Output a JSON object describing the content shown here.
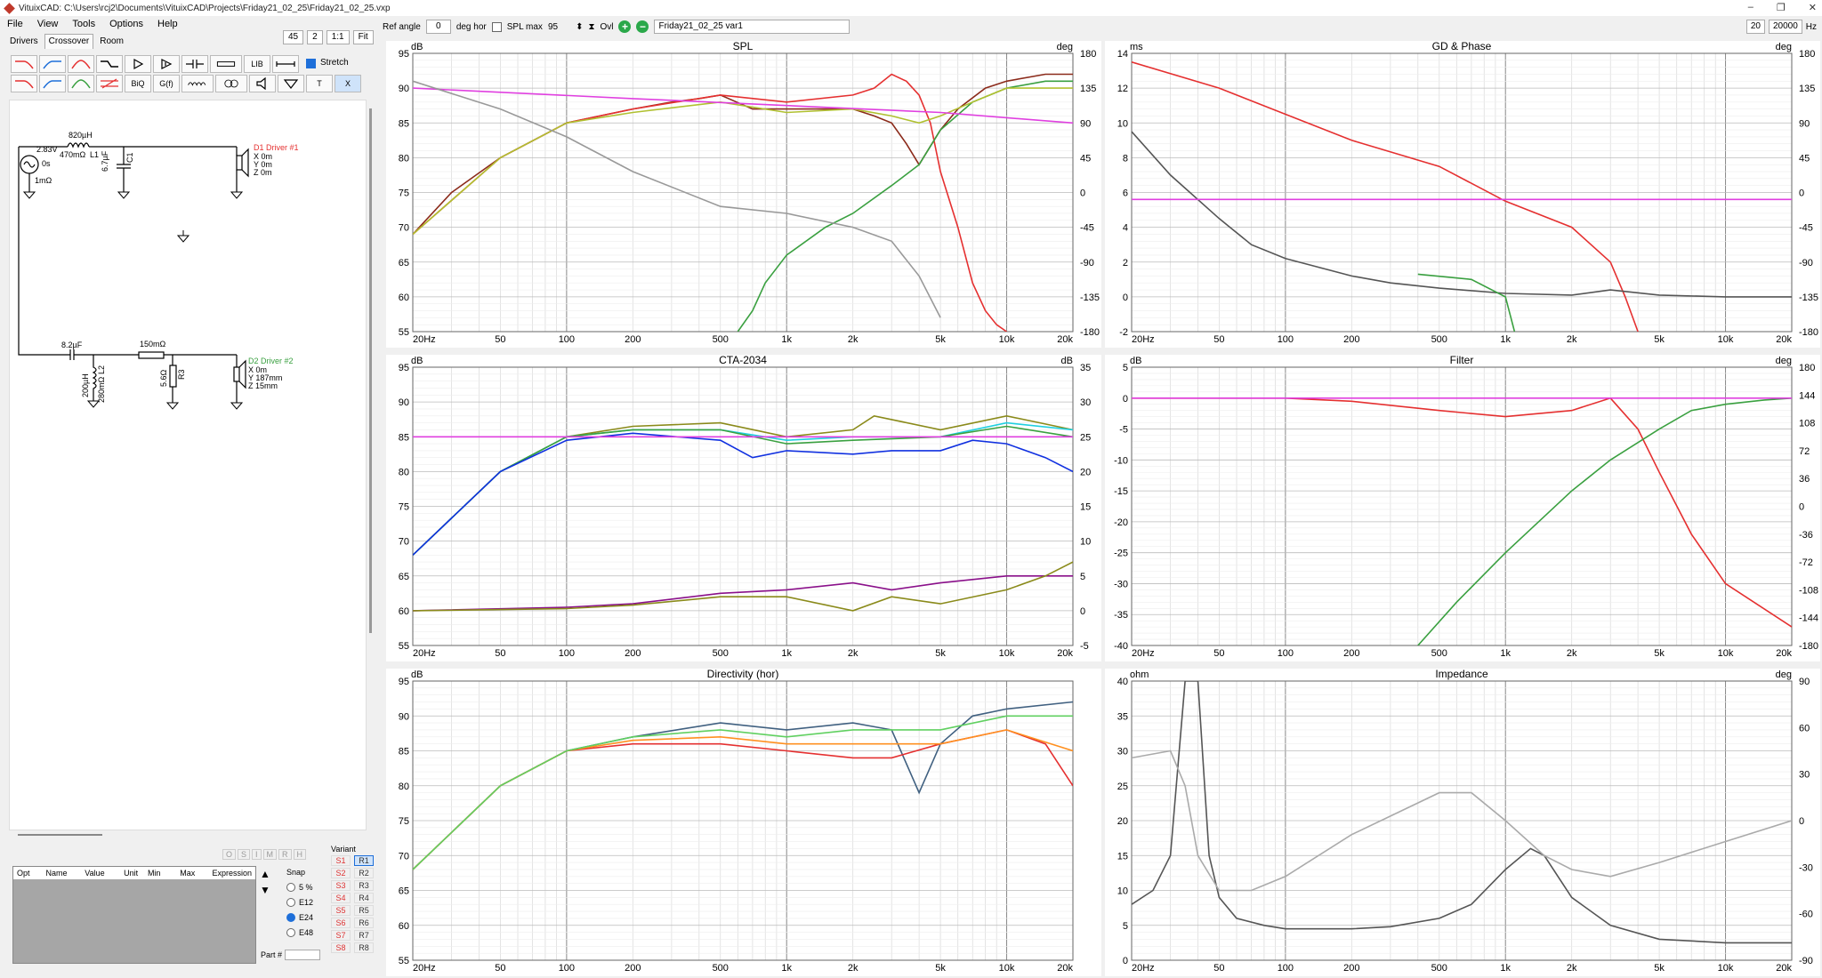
{
  "window": {
    "title": "VituixCAD: C:\\Users\\rcj2\\Documents\\VituixCAD\\Projects\\Friday21_02_25\\Friday21_02_25.vxp",
    "controls": [
      "–",
      "❐",
      "✕"
    ]
  },
  "menu": [
    "File",
    "View",
    "Tools",
    "Options",
    "Help"
  ],
  "tabs": [
    "Drivers",
    "Crossover",
    "Room"
  ],
  "view_controls": {
    "zoom1": "45",
    "zoom2": "2",
    "ratio": "1:1",
    "fit": "Fit"
  },
  "toolbar": {
    "ref_angle_label": "Ref angle",
    "ref_angle_value": "0",
    "deg_hor": "deg hor",
    "spl_max_label": "SPL max",
    "spl_max_value": "95",
    "ovl": "Ovl",
    "variant_name": "Friday21_02_25 var1",
    "freq_min": "20",
    "freq_max": "20000",
    "hz": "Hz"
  },
  "stretch_label": "Stretch",
  "component_buttons": {
    "lib": "LIB",
    "biq": "BiQ",
    "gf": "G(f)",
    "t": "T",
    "x": "X"
  },
  "schematic": {
    "source": {
      "voltage": "2.83V",
      "phase": "0s",
      "resistance": "1mΩ"
    },
    "l1": {
      "value": "820µH",
      "resistance": "470mΩ",
      "name": "L1"
    },
    "c1": {
      "value": "6.7µF",
      "name": "C1"
    },
    "d1": {
      "name": "D1 Driver #1",
      "x": "X 0m",
      "y": "Y 0m",
      "z": "Z 0m"
    },
    "c2": {
      "value": "8.2µF"
    },
    "l2": {
      "value": "200µH",
      "resistance": "280mΩ",
      "name": "L2"
    },
    "r1": {
      "value": "150mΩ"
    },
    "r3": {
      "value": "5.6Ω",
      "name": "R3"
    },
    "d2": {
      "name": "D2 Driver #2",
      "x": "X 0m",
      "y": "Y 187mm",
      "z": "Z 15mm"
    }
  },
  "param_table": {
    "headers": [
      "Opt",
      "Name",
      "Value",
      "Unit",
      "Min",
      "Max",
      "Expression"
    ]
  },
  "osimr": [
    "O",
    "S",
    "I",
    "M",
    "R",
    "H"
  ],
  "snap": {
    "title": "Snap",
    "options": [
      "5 %",
      "E12",
      "E24",
      "E48"
    ],
    "selected": "E24"
  },
  "variant": {
    "title": "Variant",
    "s": [
      "S1",
      "S2",
      "S3",
      "S4",
      "S5",
      "S6",
      "S7",
      "S8"
    ],
    "r": [
      "R1",
      "R2",
      "R3",
      "R4",
      "R5",
      "R6",
      "R7",
      "R8"
    ]
  },
  "part_label": "Part #",
  "colors": {
    "red": "#e53030",
    "green": "#3aa040",
    "darkgray": "#555555",
    "magenta": "#e040e0",
    "olive": "#8a8a1a",
    "blue": "#1030e0",
    "cyan": "#20d0e0",
    "purple": "#8a108a",
    "lightgray": "#aaaaaa",
    "orange": "#ff9020",
    "yellowgreen": "#b0c030",
    "lightgreen": "#60d060",
    "steelblue": "#406080"
  },
  "graphs": [
    {
      "title": "SPL",
      "left_unit": "dB",
      "right_unit": "deg",
      "left_ticks": [
        "95",
        "90",
        "85",
        "80",
        "75",
        "70",
        "65",
        "60",
        "55"
      ],
      "right_ticks": [
        "180",
        "135",
        "90",
        "45",
        "0",
        "-45",
        "-90",
        "-135",
        "-180"
      ],
      "x_ticks": [
        "20Hz",
        "50",
        "100",
        "200",
        "500",
        "1k",
        "2k",
        "5k",
        "10k",
        "20k"
      ]
    },
    {
      "title": "GD & Phase",
      "left_unit": "ms",
      "right_unit": "deg",
      "left_ticks": [
        "14",
        "12",
        "10",
        "8",
        "6",
        "4",
        "2",
        "0",
        "-2"
      ],
      "right_ticks": [
        "180",
        "135",
        "90",
        "45",
        "0",
        "-45",
        "-90",
        "-135",
        "-180"
      ],
      "x_ticks": [
        "20Hz",
        "50",
        "100",
        "200",
        "500",
        "1k",
        "2k",
        "5k",
        "10k",
        "20k"
      ]
    },
    {
      "title": "CTA-2034",
      "left_unit": "dB",
      "right_unit": "dB",
      "left_ticks": [
        "95",
        "90",
        "85",
        "80",
        "75",
        "70",
        "65",
        "60",
        "55"
      ],
      "right_ticks": [
        "35",
        "30",
        "25",
        "20",
        "15",
        "10",
        "5",
        "0",
        "-5"
      ],
      "x_ticks": [
        "20Hz",
        "50",
        "100",
        "200",
        "500",
        "1k",
        "2k",
        "5k",
        "10k",
        "20k"
      ]
    },
    {
      "title": "Filter",
      "left_unit": "dB",
      "right_unit": "deg",
      "left_ticks": [
        "5",
        "0",
        "-5",
        "-10",
        "-15",
        "-20",
        "-25",
        "-30",
        "-35",
        "-40"
      ],
      "right_ticks": [
        "180",
        "144",
        "108",
        "72",
        "36",
        "0",
        "-36",
        "-72",
        "-108",
        "-144",
        "-180"
      ],
      "x_ticks": [
        "20Hz",
        "50",
        "100",
        "200",
        "500",
        "1k",
        "2k",
        "5k",
        "10k",
        "20k"
      ]
    },
    {
      "title": "Directivity (hor)",
      "left_unit": "dB",
      "right_unit": "",
      "left_ticks": [
        "95",
        "90",
        "85",
        "80",
        "75",
        "70",
        "65",
        "60",
        "55"
      ],
      "right_ticks": [],
      "x_ticks": [
        "20Hz",
        "50",
        "100",
        "200",
        "500",
        "1k",
        "2k",
        "5k",
        "10k",
        "20k"
      ]
    },
    {
      "title": "Impedance",
      "left_unit": "ohm",
      "right_unit": "deg",
      "left_ticks": [
        "40",
        "35",
        "30",
        "25",
        "20",
        "15",
        "10",
        "5",
        "0"
      ],
      "right_ticks": [
        "90",
        "60",
        "30",
        "0",
        "-30",
        "-60",
        "-90"
      ],
      "x_ticks": [
        "20Hz",
        "50",
        "100",
        "200",
        "500",
        "1k",
        "2k",
        "5k",
        "10k",
        "20k"
      ]
    }
  ],
  "chart_data": [
    {
      "type": "line",
      "title": "SPL",
      "xscale": "log",
      "xlim": [
        20,
        20000
      ],
      "ylim": [
        55,
        95
      ],
      "y2lim": [
        -180,
        180
      ],
      "grid": true,
      "series": [
        {
          "color": "#8b2a1a",
          "x": [
            20,
            30,
            50,
            100,
            200,
            300,
            400,
            500,
            700,
            1000,
            1500,
            2000,
            2500,
            3000,
            3500,
            4000,
            5000,
            6000,
            8000,
            10000,
            15000,
            20000
          ],
          "y": [
            69,
            75,
            80,
            85,
            87,
            88,
            88.5,
            89,
            87,
            87,
            87,
            87,
            86,
            85,
            82,
            79,
            84,
            87,
            90,
            91,
            92,
            92
          ]
        },
        {
          "color": "#e53030",
          "x": [
            20,
            50,
            100,
            200,
            500,
            1000,
            2000,
            2500,
            3000,
            3500,
            4000,
            4500,
            5000,
            6000,
            7000,
            8000,
            9000,
            10000
          ],
          "y": [
            69,
            80,
            85,
            87,
            89,
            88,
            89,
            90,
            92,
            91,
            89,
            85,
            78,
            70,
            62,
            58,
            56,
            55
          ]
        },
        {
          "color": "#3aa040",
          "x": [
            600,
            700,
            800,
            1000,
            1500,
            2000,
            3000,
            4000,
            5000,
            7000,
            10000,
            15000,
            20000
          ],
          "y": [
            55,
            58,
            62,
            66,
            70,
            72,
            76,
            79,
            84,
            88,
            90,
            91,
            91
          ]
        },
        {
          "color": "#b0c030",
          "x": [
            20,
            50,
            100,
            200,
            500,
            1000,
            2000,
            3000,
            4000,
            5000,
            7000,
            10000,
            20000
          ],
          "y": [
            69,
            80,
            85,
            86.5,
            88,
            86.5,
            87,
            86,
            85,
            86,
            88,
            90,
            90
          ]
        },
        {
          "color": "#e040e0",
          "x": [
            20,
            200,
            1000,
            5000,
            20000
          ],
          "y": [
            90,
            88.5,
            87.5,
            86.5,
            85
          ]
        },
        {
          "color": "#999999",
          "x": [
            20,
            50,
            100,
            200,
            500,
            1000,
            2000,
            3000,
            4000,
            5000
          ],
          "y": [
            91,
            87,
            83,
            78,
            73,
            72,
            70,
            68,
            63,
            57
          ]
        }
      ]
    },
    {
      "type": "line",
      "title": "GD & Phase",
      "xscale": "log",
      "xlim": [
        20,
        20000
      ],
      "ylim": [
        -2,
        14
      ],
      "grid": true,
      "series": [
        {
          "color": "#e53030",
          "x": [
            20,
            50,
            100,
            200,
            500,
            1000,
            2000,
            3000,
            3500,
            4000
          ],
          "y": [
            13.5,
            12,
            10.5,
            9,
            7.5,
            5.5,
            4,
            2,
            0,
            -2
          ]
        },
        {
          "color": "#555555",
          "x": [
            20,
            30,
            50,
            70,
            100,
            200,
            300,
            500,
            1000,
            2000,
            3000,
            5000,
            10000,
            20000
          ],
          "y": [
            9.5,
            7,
            4.5,
            3,
            2.2,
            1.2,
            0.8,
            0.5,
            0.2,
            0.1,
            0.4,
            0.1,
            0,
            0
          ]
        },
        {
          "color": "#e040e0",
          "x": [
            20,
            20000
          ],
          "y": [
            5.6,
            5.6
          ]
        },
        {
          "color": "#3aa040",
          "x": [
            400,
            700,
            1000,
            1100
          ],
          "y": [
            1.3,
            1,
            0,
            -2
          ]
        }
      ]
    },
    {
      "type": "line",
      "title": "CTA-2034",
      "xscale": "log",
      "xlim": [
        20,
        20000
      ],
      "ylim": [
        55,
        95
      ],
      "y2lim": [
        -5,
        35
      ],
      "grid": true,
      "series": [
        {
          "color": "#8a8a1a",
          "x": [
            20,
            50,
            100,
            200,
            500,
            1000,
            2000,
            2500,
            5000,
            10000,
            20000
          ],
          "y": [
            68,
            80,
            85,
            86.5,
            87,
            85,
            86,
            88,
            86,
            88,
            86
          ]
        },
        {
          "color": "#20d0e0",
          "x": [
            20,
            50,
            100,
            200,
            500,
            1000,
            2000,
            5000,
            10000,
            20000
          ],
          "y": [
            68,
            80,
            85,
            86,
            86,
            84.5,
            85,
            85,
            87,
            86
          ]
        },
        {
          "color": "#3aa040",
          "x": [
            20,
            50,
            100,
            200,
            500,
            1000,
            2000,
            5000,
            10000,
            20000
          ],
          "y": [
            68,
            80,
            85,
            86,
            86,
            84,
            84.5,
            85,
            86.5,
            85
          ]
        },
        {
          "color": "#1030e0",
          "x": [
            20,
            50,
            100,
            200,
            500,
            700,
            1000,
            2000,
            3000,
            5000,
            7000,
            10000,
            15000,
            20000
          ],
          "y": [
            68,
            80,
            84.5,
            85.5,
            84.5,
            82,
            83,
            82.5,
            83,
            83,
            84.5,
            84,
            82,
            80
          ]
        },
        {
          "color": "#e040e0",
          "x": [
            20,
            20000
          ],
          "y": [
            85,
            85
          ]
        },
        {
          "color": "#8a108a",
          "x": [
            20,
            100,
            200,
            500,
            1000,
            2000,
            3000,
            5000,
            10000,
            20000
          ],
          "y": [
            60,
            60.5,
            61,
            62.5,
            63,
            64,
            63,
            64,
            65,
            65
          ]
        },
        {
          "color": "#8a8a1a",
          "x": [
            20,
            100,
            200,
            500,
            1000,
            2000,
            3000,
            5000,
            10000,
            15000,
            20000
          ],
          "y": [
            60,
            60.3,
            60.8,
            62,
            62,
            60,
            62,
            61,
            63,
            65,
            67
          ]
        }
      ]
    },
    {
      "type": "line",
      "title": "Filter",
      "xscale": "log",
      "xlim": [
        20,
        20000
      ],
      "ylim": [
        -40,
        5
      ],
      "grid": true,
      "series": [
        {
          "color": "#e53030",
          "x": [
            20,
            100,
            200,
            500,
            1000,
            2000,
            3000,
            4000,
            5000,
            7000,
            10000,
            20000
          ],
          "y": [
            0,
            0,
            -0.5,
            -2,
            -3,
            -2,
            0,
            -5,
            -12,
            -22,
            -30,
            -37
          ]
        },
        {
          "color": "#3aa040",
          "x": [
            400,
            600,
            1000,
            2000,
            3000,
            5000,
            7000,
            10000,
            15000,
            20000
          ],
          "y": [
            -40,
            -33,
            -25,
            -15,
            -10,
            -5,
            -2,
            -1,
            -0.3,
            0
          ]
        },
        {
          "color": "#e040e0",
          "x": [
            20,
            20000
          ],
          "y": [
            0,
            0
          ]
        }
      ]
    },
    {
      "type": "line",
      "title": "Directivity (hor)",
      "xscale": "log",
      "xlim": [
        20,
        20000
      ],
      "ylim": [
        55,
        95
      ],
      "grid": true,
      "series": [
        {
          "color": "#406080",
          "x": [
            20,
            50,
            100,
            200,
            500,
            1000,
            2000,
            3000,
            4000,
            5000,
            7000,
            10000,
            20000
          ],
          "y": [
            68,
            80,
            85,
            87,
            89,
            88,
            89,
            88,
            79,
            86,
            90,
            91,
            92
          ]
        },
        {
          "color": "#e53030",
          "x": [
            20,
            50,
            100,
            200,
            500,
            1000,
            2000,
            3000,
            5000,
            10000,
            15000,
            20000
          ],
          "y": [
            68,
            80,
            85,
            86,
            86,
            85,
            84,
            84,
            86,
            88,
            86,
            80
          ]
        },
        {
          "color": "#ff9020",
          "x": [
            20,
            50,
            100,
            200,
            500,
            1000,
            2000,
            5000,
            10000,
            20000
          ],
          "y": [
            68,
            80,
            85,
            86.5,
            87,
            86,
            86,
            86,
            88,
            85
          ]
        },
        {
          "color": "#60d060",
          "x": [
            20,
            50,
            100,
            200,
            500,
            1000,
            2000,
            5000,
            10000,
            20000
          ],
          "y": [
            68,
            80,
            85,
            87,
            88,
            87,
            88,
            88,
            90,
            90
          ]
        }
      ]
    },
    {
      "type": "line",
      "title": "Impedance",
      "xscale": "log",
      "xlim": [
        20,
        20000
      ],
      "ylim": [
        0,
        40
      ],
      "grid": true,
      "series": [
        {
          "color": "#555555",
          "x": [
            20,
            25,
            30,
            35,
            40,
            45,
            50,
            60,
            80,
            100,
            200,
            300,
            500,
            700,
            1000,
            1300,
            1500,
            2000,
            3000,
            5000,
            10000,
            20000
          ],
          "y": [
            8,
            10,
            15,
            40,
            40,
            15,
            9,
            6,
            5,
            4.5,
            4.5,
            4.8,
            6,
            8,
            13,
            16,
            15,
            9,
            5,
            3,
            2.5,
            2.5
          ]
        },
        {
          "color": "#aaaaaa",
          "x": [
            20,
            30,
            35,
            40,
            50,
            70,
            100,
            200,
            500,
            700,
            1000,
            1500,
            2000,
            3000,
            5000,
            10000,
            20000
          ],
          "y": [
            29,
            30,
            25,
            15,
            10,
            10,
            12,
            18,
            24,
            24,
            20,
            15,
            13,
            12,
            14,
            17,
            20
          ]
        }
      ]
    }
  ]
}
